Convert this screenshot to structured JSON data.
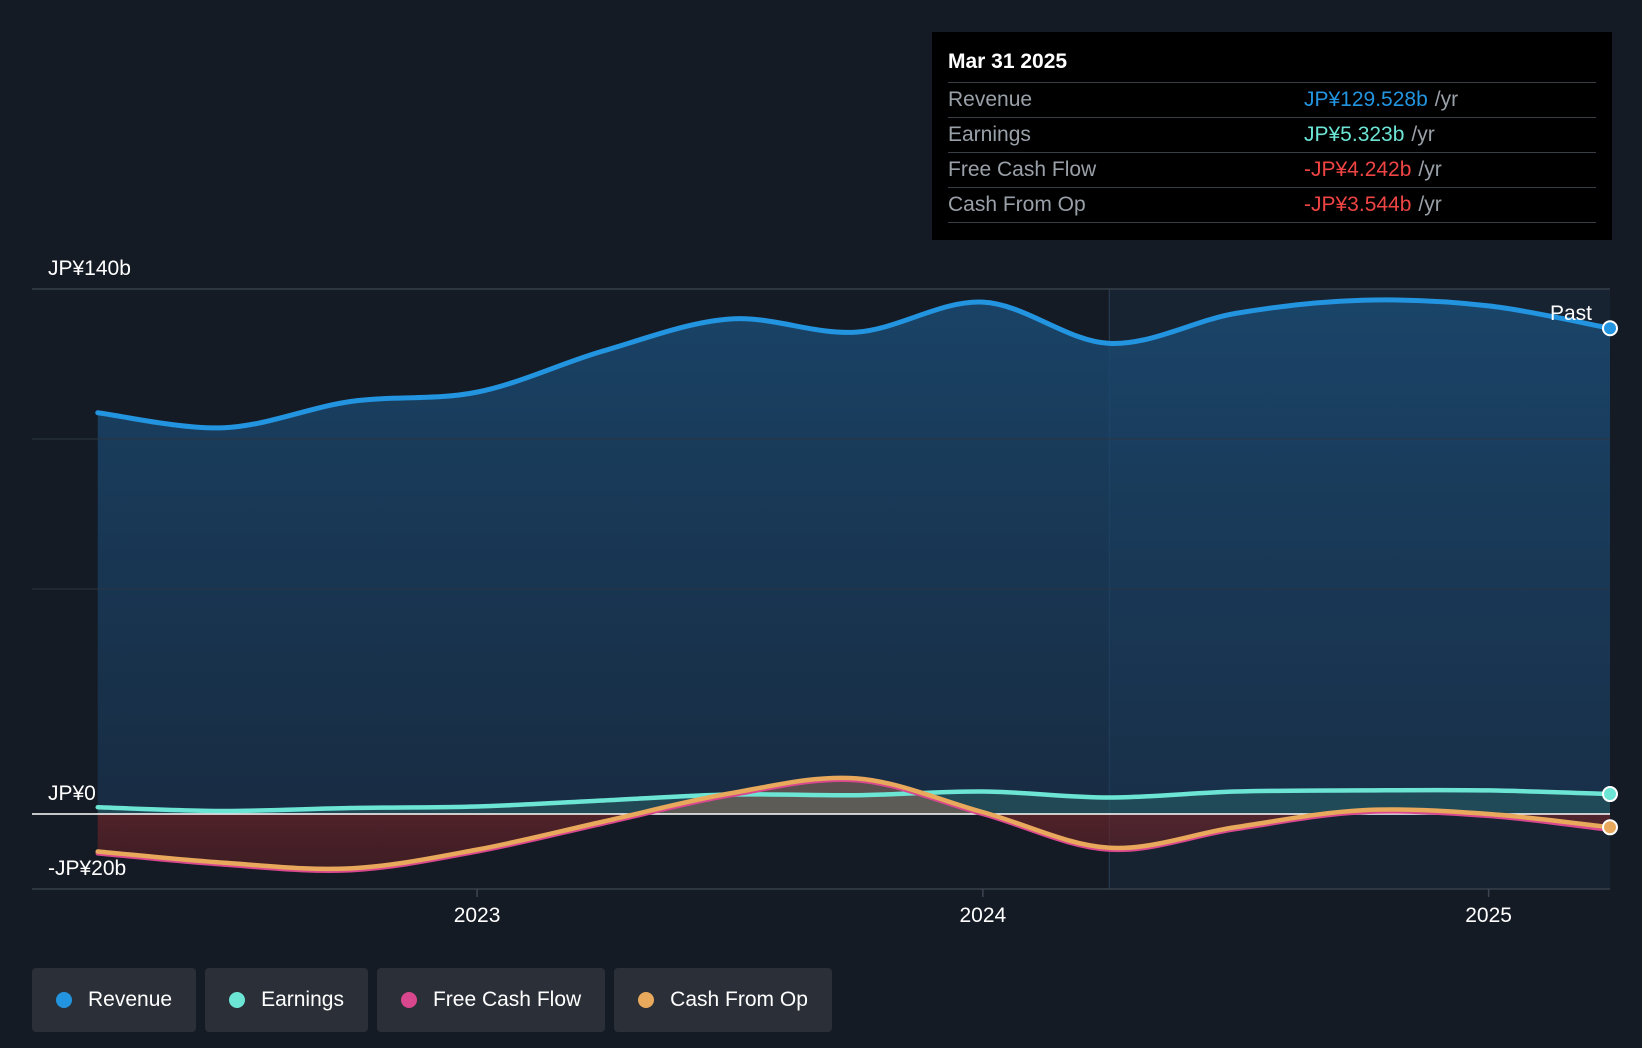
{
  "tooltip": {
    "date": "Mar 31 2025",
    "rows": [
      {
        "label": "Revenue",
        "value": "JP¥129.528b",
        "unit": "/yr",
        "color": "#2394df"
      },
      {
        "label": "Earnings",
        "value": "JP¥5.323b",
        "unit": "/yr",
        "color": "#6ce5d5"
      },
      {
        "label": "Free Cash Flow",
        "value": "-JP¥4.242b",
        "unit": "/yr",
        "color": "#ef4444"
      },
      {
        "label": "Cash From Op",
        "value": "-JP¥3.544b",
        "unit": "/yr",
        "color": "#ef4444"
      }
    ]
  },
  "legend": [
    {
      "label": "Revenue",
      "color": "#2394df"
    },
    {
      "label": "Earnings",
      "color": "#6ce5d5"
    },
    {
      "label": "Free Cash Flow",
      "color": "#d9488e"
    },
    {
      "label": "Cash From Op",
      "color": "#e8a95c"
    }
  ],
  "past_label": "Past",
  "chart_data": {
    "type": "line",
    "title": "",
    "xlabel": "",
    "ylabel": "",
    "ylim": [
      -20,
      140
    ],
    "y_tick_labels": [
      {
        "value": 140,
        "label": "JP¥140b"
      },
      {
        "value": 0,
        "label": "JP¥0"
      },
      {
        "value": -20,
        "label": "-JP¥20b"
      }
    ],
    "x_tick_labels": [
      {
        "value": 2023,
        "label": "2023"
      },
      {
        "value": 2024,
        "label": "2024"
      },
      {
        "value": 2025,
        "label": "2025"
      }
    ],
    "xlim": [
      2022.12,
      2025.24
    ],
    "past_divider_x": 2024.25,
    "x": [
      2022.25,
      2022.5,
      2022.75,
      2023.0,
      2023.25,
      2023.5,
      2023.75,
      2024.0,
      2024.25,
      2024.5,
      2024.75,
      2025.0,
      2025.24
    ],
    "series": [
      {
        "name": "Revenue",
        "color": "#2394df",
        "values": [
          107.0,
          103.0,
          110.0,
          112.5,
          123.5,
          132.0,
          128.5,
          136.5,
          125.5,
          133.5,
          137.0,
          135.5,
          129.528
        ]
      },
      {
        "name": "Earnings",
        "color": "#6ce5d5",
        "values": [
          1.8,
          0.8,
          1.6,
          2.0,
          3.6,
          5.2,
          5.0,
          6.0,
          4.4,
          6.0,
          6.3,
          6.3,
          5.323
        ]
      },
      {
        "name": "Free Cash Flow",
        "color": "#d9488e",
        "values": [
          -10.5,
          -13.5,
          -15.0,
          -10.0,
          -2.5,
          5.0,
          9.0,
          0.0,
          -9.5,
          -4.0,
          0.5,
          -0.5,
          -4.242
        ]
      },
      {
        "name": "Cash From Op",
        "color": "#e8a95c",
        "values": [
          -10.0,
          -13.0,
          -14.5,
          -9.5,
          -2.0,
          5.5,
          9.5,
          0.5,
          -9.0,
          -3.5,
          1.0,
          0.0,
          -3.544
        ]
      }
    ]
  }
}
